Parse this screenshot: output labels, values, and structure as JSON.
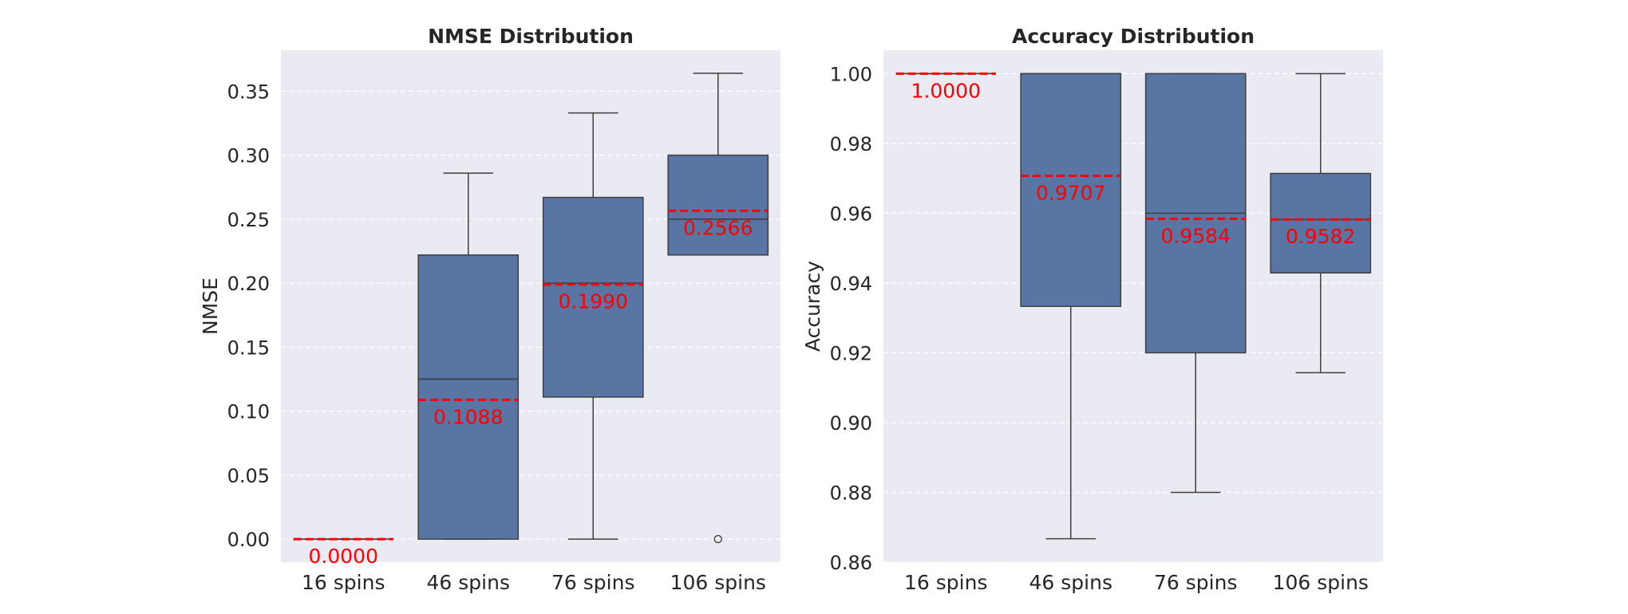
{
  "colors": {
    "box_fill": "#5875a4",
    "box_edge": "#3f3f3f",
    "mean_line": "#ff0000",
    "panel_bg": "#eaeaf2",
    "grid": "#ffffff",
    "text": "#262626"
  },
  "chart_data": [
    {
      "type": "box",
      "title": "NMSE Distribution",
      "xlabel": "",
      "ylabel": "NMSE",
      "ylim": [
        -0.018,
        0.382
      ],
      "yticks": [
        0.0,
        0.05,
        0.1,
        0.15,
        0.2,
        0.25,
        0.3,
        0.35
      ],
      "ytick_labels": [
        "0.00",
        "0.05",
        "0.10",
        "0.15",
        "0.20",
        "0.25",
        "0.30",
        "0.35"
      ],
      "grid": "y dashed",
      "categories": [
        "16 spins",
        "46 spins",
        "76 spins",
        "106 spins"
      ],
      "boxes": [
        {
          "whisker_low": 0.0,
          "q1": 0.0,
          "median": 0.0,
          "q3": 0.0,
          "whisker_high": 0.0,
          "mean": 0.0,
          "mean_label": "0.0000",
          "outliers": []
        },
        {
          "whisker_low": 0.0,
          "q1": 0.0,
          "median": 0.125,
          "q3": 0.222,
          "whisker_high": 0.286,
          "mean": 0.1088,
          "mean_label": "0.1088",
          "outliers": []
        },
        {
          "whisker_low": 0.0,
          "q1": 0.111,
          "median": 0.2,
          "q3": 0.267,
          "whisker_high": 0.333,
          "mean": 0.199,
          "mean_label": "0.1990",
          "outliers": []
        },
        {
          "whisker_low": 0.222,
          "q1": 0.222,
          "median": 0.25,
          "q3": 0.3,
          "whisker_high": 0.364,
          "mean": 0.2566,
          "mean_label": "0.2566",
          "outliers": [
            0.0
          ]
        }
      ]
    },
    {
      "type": "box",
      "title": "Accuracy Distribution",
      "xlabel": "",
      "ylabel": "Accuracy",
      "ylim": [
        0.86,
        1.0067
      ],
      "yticks": [
        0.86,
        0.88,
        0.9,
        0.92,
        0.94,
        0.96,
        0.98,
        1.0
      ],
      "ytick_labels": [
        "0.86",
        "0.88",
        "0.90",
        "0.92",
        "0.94",
        "0.96",
        "0.98",
        "1.00"
      ],
      "grid": "y dashed",
      "categories": [
        "16 spins",
        "46 spins",
        "76 spins",
        "106 spins"
      ],
      "boxes": [
        {
          "whisker_low": 1.0,
          "q1": 1.0,
          "median": 1.0,
          "q3": 1.0,
          "whisker_high": 1.0,
          "mean": 1.0,
          "mean_label": "1.0000",
          "outliers": []
        },
        {
          "whisker_low": 0.8667,
          "q1": 0.9333,
          "median": 1.0,
          "q3": 1.0,
          "whisker_high": 1.0,
          "mean": 0.9707,
          "mean_label": "0.9707",
          "outliers": []
        },
        {
          "whisker_low": 0.88,
          "q1": 0.92,
          "median": 0.96,
          "q3": 1.0,
          "whisker_high": 1.0,
          "mean": 0.9584,
          "mean_label": "0.9584",
          "outliers": []
        },
        {
          "whisker_low": 0.9143,
          "q1": 0.9429,
          "median": 0.9582,
          "q3": 0.9714,
          "whisker_high": 1.0,
          "mean": 0.9582,
          "mean_label": "0.9582",
          "outliers": []
        }
      ]
    }
  ]
}
